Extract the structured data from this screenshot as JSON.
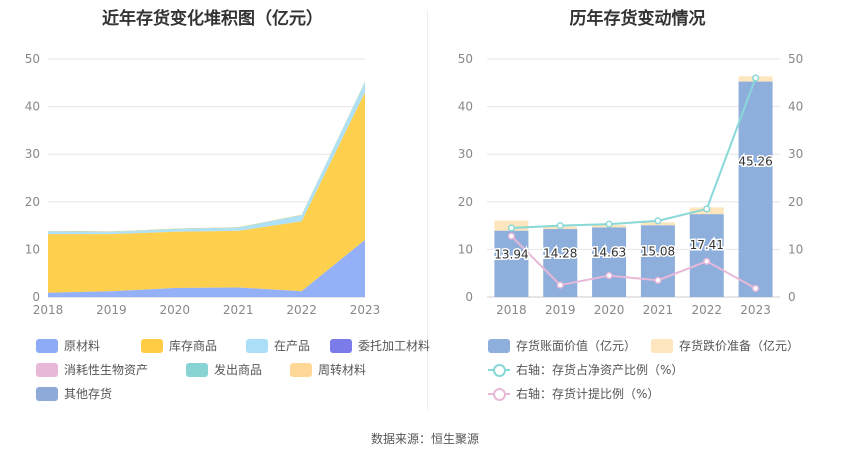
{
  "left_chart": {
    "title": "近年存货变化堆积图（亿元）",
    "chart_data": {
      "type": "area",
      "stacked": true,
      "x": [
        "2018",
        "2019",
        "2020",
        "2021",
        "2022",
        "2023"
      ],
      "ylim": [
        0,
        50
      ],
      "yticks": [
        0,
        10,
        20,
        30,
        40,
        50
      ],
      "grid": true,
      "legend_position": "bottom",
      "series": [
        {
          "name": "原材料",
          "color": "#8eacf5",
          "values": [
            0.9,
            1.2,
            1.9,
            2.0,
            1.2,
            12.0
          ]
        },
        {
          "name": "库存商品",
          "color": "#ffcc44",
          "values": [
            12.3,
            12.0,
            11.8,
            11.9,
            14.7,
            31.0
          ]
        },
        {
          "name": "在产品",
          "color": "#aadff7",
          "values": [
            0.5,
            0.4,
            0.5,
            0.6,
            1.2,
            2.0
          ]
        },
        {
          "name": "委托加工材料",
          "color": "#7b7bea",
          "values": [
            0,
            0,
            0,
            0,
            0,
            0
          ]
        },
        {
          "name": "消耗性生物资产",
          "color": "#e8b8d8",
          "values": [
            0,
            0,
            0,
            0,
            0,
            0
          ]
        },
        {
          "name": "发出商品",
          "color": "#88d4d4",
          "values": [
            0.1,
            0.1,
            0.1,
            0.1,
            0.1,
            0.2
          ]
        },
        {
          "name": "周转材料",
          "color": "#ffd898",
          "values": [
            0.1,
            0.1,
            0.1,
            0.1,
            0.1,
            0.1
          ]
        },
        {
          "name": "其他存货",
          "color": "#8eaad8",
          "values": [
            0,
            0,
            0,
            0,
            0,
            0
          ]
        }
      ]
    }
  },
  "right_chart": {
    "title": "历年存货变动情况",
    "chart_data": {
      "type": "bar",
      "x": [
        "2018",
        "2019",
        "2020",
        "2021",
        "2022",
        "2023"
      ],
      "ylim": [
        0,
        50
      ],
      "yticks": [
        0,
        10,
        20,
        30,
        40,
        50
      ],
      "y2lim": [
        0,
        50
      ],
      "y2ticks": [
        0,
        10,
        20,
        30,
        40,
        50
      ],
      "grid": true,
      "legend_position": "bottom",
      "bars": [
        {
          "name": "存货账面价值（亿元）",
          "color": "#8eaedc",
          "values": [
            13.94,
            14.28,
            14.63,
            15.08,
            17.41,
            45.26
          ]
        },
        {
          "name": "存货跌价准备（亿元）",
          "color": "#fde5bd",
          "values": [
            2.1,
            0.5,
            0.5,
            0.6,
            1.4,
            1.1
          ]
        }
      ],
      "bar_labels": [
        "13.94",
        "14.28",
        "14.63",
        "15.08",
        "17.41",
        "45.26"
      ],
      "lines": [
        {
          "name": "右轴：存货占净资产比例（%）",
          "color": "#88d8d8",
          "values": [
            14.5,
            15.0,
            15.3,
            16.0,
            18.5,
            46.0
          ]
        },
        {
          "name": "右轴：存货计提比例（%）",
          "color": "#e8b8d8",
          "values": [
            12.8,
            2.5,
            4.5,
            3.5,
            7.5,
            1.8
          ]
        }
      ]
    }
  },
  "source": "数据来源：恒生聚源"
}
